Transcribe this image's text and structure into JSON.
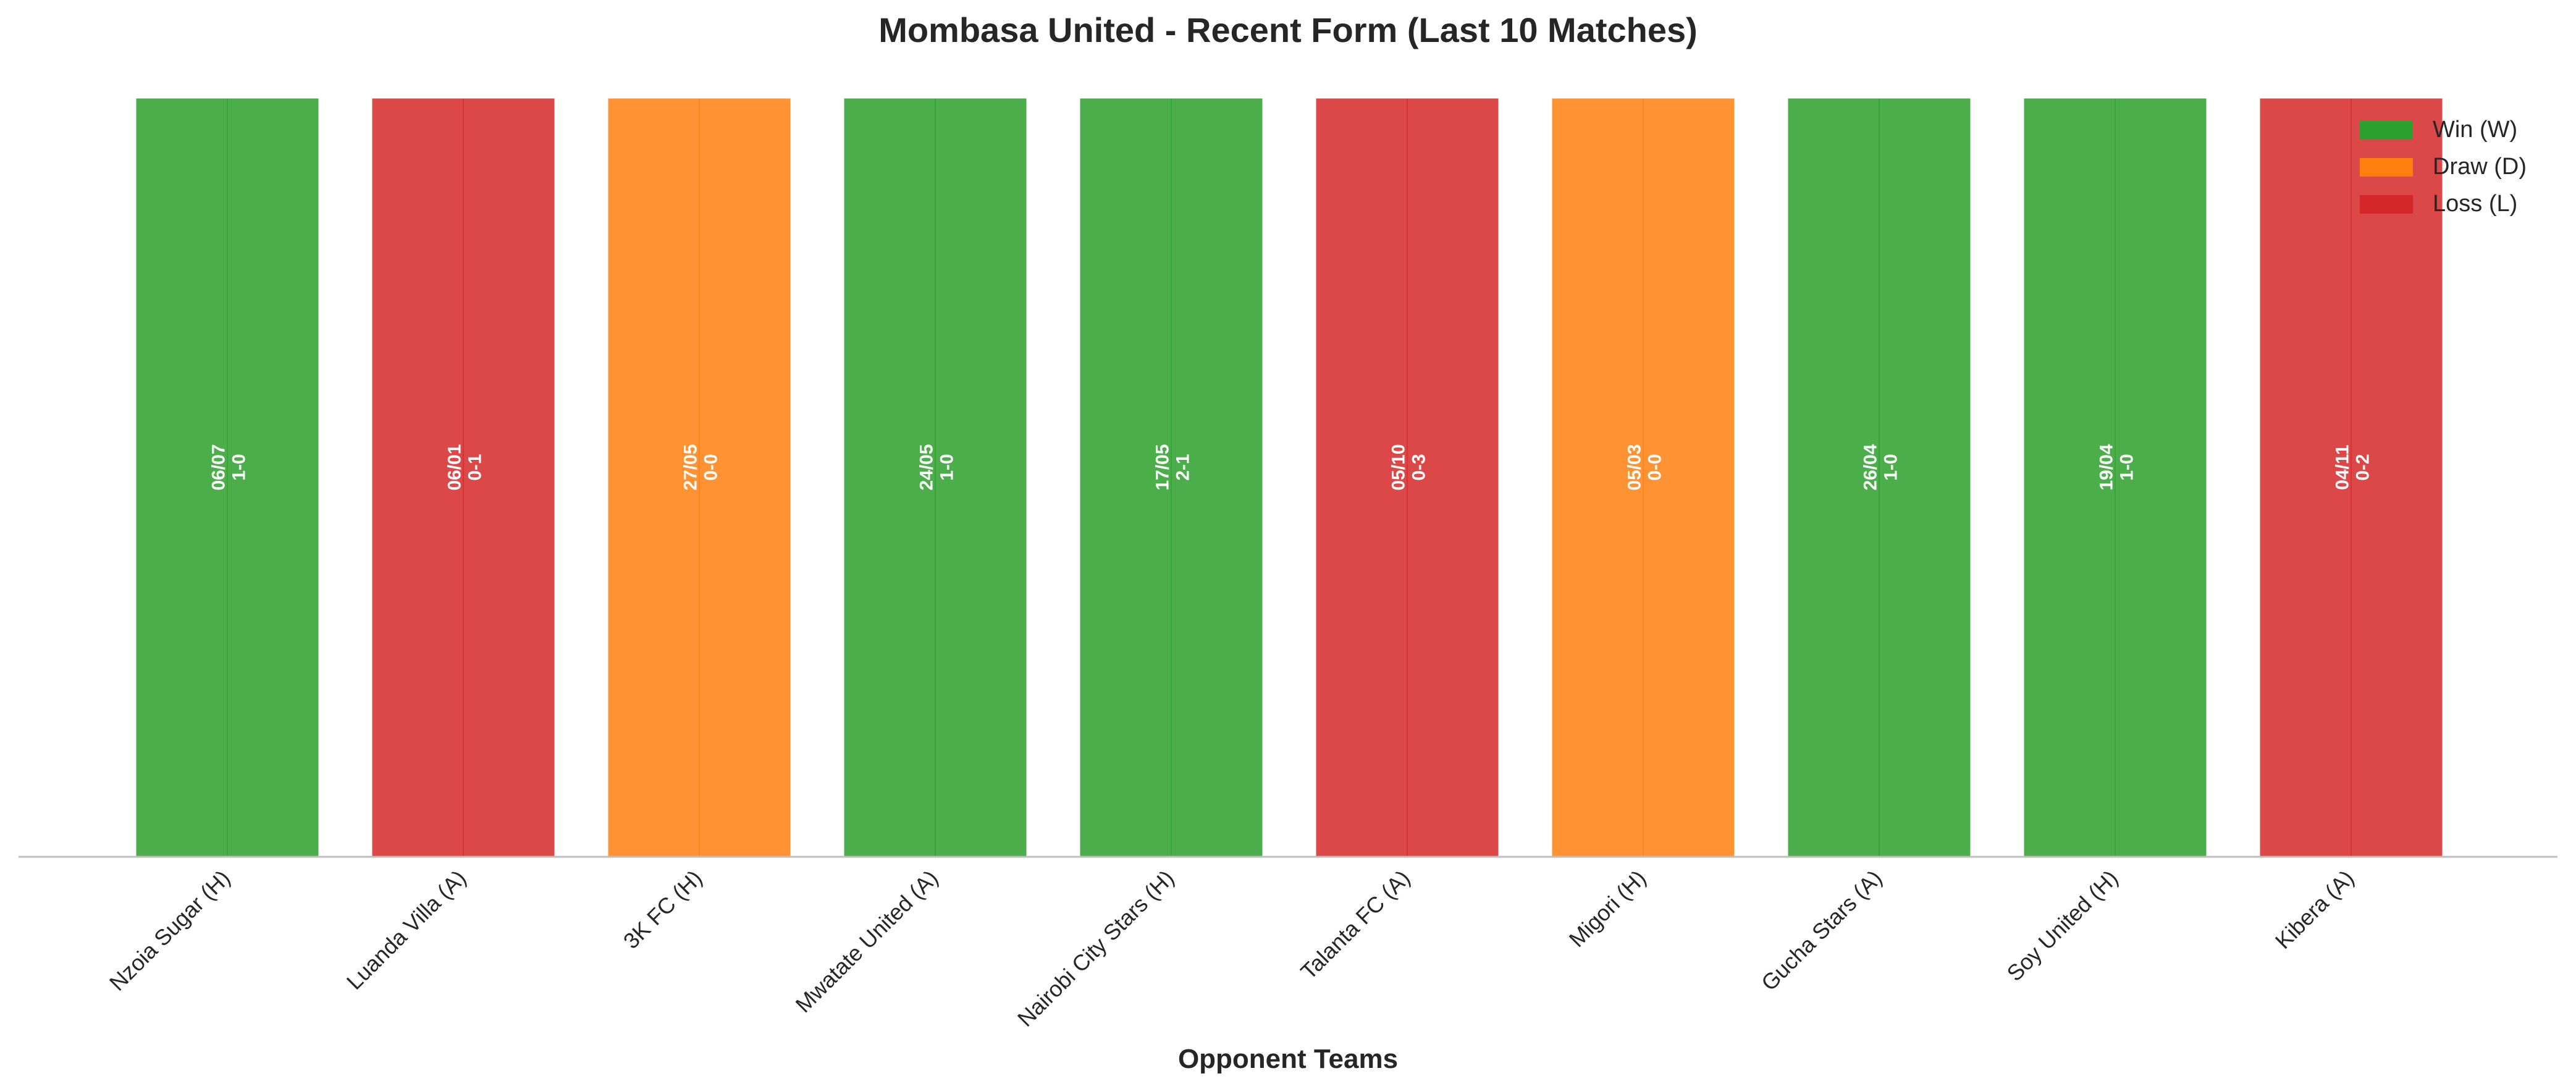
{
  "chart_data": {
    "type": "bar",
    "title": "Mombasa United - Recent Form (Last 10 Matches)",
    "xlabel": "Opponent Teams",
    "ylabel": "",
    "ylim": [
      0,
      1
    ],
    "grid": false,
    "legend_position": "top-right",
    "categories": [
      "Nzoia Sugar (H)",
      "Luanda Villa (A)",
      "3K FC (H)",
      "Mwatate United (A)",
      "Nairobi City Stars (H)",
      "Talanta FC (A)",
      "Migori (H)",
      "Gucha Stars (A)",
      "Soy United (H)",
      "Kibera (A)"
    ],
    "values": [
      1,
      1,
      1,
      1,
      1,
      1,
      1,
      1,
      1,
      1
    ],
    "results": [
      "W",
      "L",
      "D",
      "W",
      "W",
      "L",
      "D",
      "W",
      "W",
      "L"
    ],
    "dates": [
      "06/07",
      "06/01",
      "27/05",
      "24/05",
      "17/05",
      "05/10",
      "05/03",
      "26/04",
      "19/04",
      "04/11"
    ],
    "scores": [
      "1-0",
      "0-1",
      "0-0",
      "1-0",
      "2-1",
      "0-3",
      "0-0",
      "1-0",
      "1-0",
      "0-2"
    ],
    "legend": [
      {
        "key": "W",
        "label": "Win (W)",
        "color": "#2ca02c"
      },
      {
        "key": "D",
        "label": "Draw (D)",
        "color": "#ff7f0e"
      },
      {
        "key": "L",
        "label": "Loss (L)",
        "color": "#d62728"
      }
    ]
  }
}
